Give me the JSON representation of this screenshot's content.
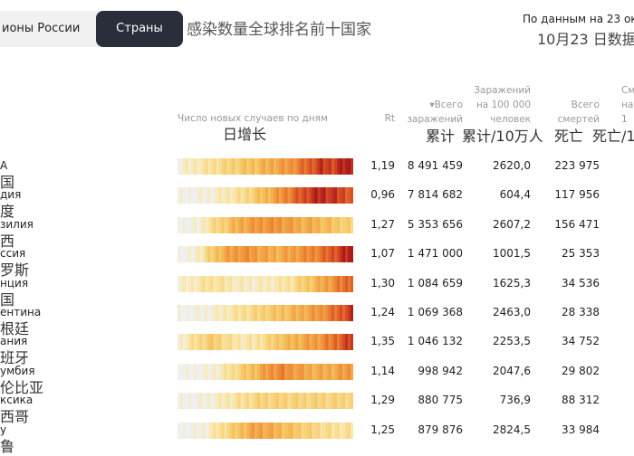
{
  "tabs": {
    "regions": "ионы России",
    "countries": "Страны"
  },
  "heading_cn": "感染数量全球排名前十国家",
  "date_ru": "По данным на 23 ок",
  "date_cn": "10月23 日数据",
  "headers": {
    "daily_ru": "Число новых случаев по дням",
    "daily_cn": "日增长",
    "rt": "Rt",
    "total_ru_line1": "▾Всего",
    "total_ru_line2": "заражений",
    "total_cn": "累计",
    "per100_ru_line1": "Заражений",
    "per100_ru_line2": "на 100 000",
    "per100_ru_line3": "человек",
    "per100_cn": "累计/10万人",
    "deaths_ru_line1": "Всего",
    "deaths_ru_line2": "смертей",
    "deaths_cn": "死亡",
    "deaths_per_ru_line1": "См",
    "deaths_per_ru_line2": "на 1",
    "deaths_per_cn": "死亡/1"
  },
  "countries": [
    {
      "ru": "A",
      "cn": "国",
      "rt": "1,19",
      "total": "8 491 459",
      "per100k": "2620,0",
      "deaths": "223 975",
      "intensity": [
        0.05,
        0.1,
        0.15,
        0.2,
        0.25,
        0.3,
        0.35,
        0.4,
        0.45,
        0.5,
        0.55,
        0.6,
        0.7,
        0.8,
        0.9,
        0.85,
        0.95,
        1.0
      ]
    },
    {
      "ru": "дия",
      "cn": "度",
      "rt": "0,96",
      "total": "7 814 682",
      "per100k": "604,4",
      "deaths": "117 956",
      "intensity": [
        0.0,
        0.0,
        0.02,
        0.05,
        0.1,
        0.15,
        0.2,
        0.3,
        0.4,
        0.5,
        0.6,
        0.7,
        0.8,
        0.9,
        0.95,
        0.9,
        0.85,
        0.8
      ]
    },
    {
      "ru": "зилия",
      "cn": "西",
      "rt": "1,27",
      "total": "5 353 656",
      "per100k": "2607,2",
      "deaths": "156 471",
      "intensity": [
        0.0,
        0.02,
        0.05,
        0.2,
        0.3,
        0.4,
        0.5,
        0.55,
        0.6,
        0.6,
        0.6,
        0.55,
        0.5,
        0.5,
        0.45,
        0.4,
        0.35,
        0.3
      ]
    },
    {
      "ru": "ссия",
      "cn": "罗斯",
      "rt": "1,07",
      "total": "1 471 000",
      "per100k": "1001,5",
      "deaths": "25 353",
      "intensity": [
        0.0,
        0.02,
        0.1,
        0.3,
        0.45,
        0.55,
        0.6,
        0.6,
        0.55,
        0.5,
        0.5,
        0.55,
        0.6,
        0.65,
        0.7,
        0.8,
        0.9,
        1.0
      ]
    },
    {
      "ru": "нция",
      "cn": "国",
      "rt": "1,30",
      "total": "1 084 659",
      "per100k": "1625,3",
      "deaths": "34 536",
      "intensity": [
        0.05,
        0.1,
        0.15,
        0.2,
        0.2,
        0.15,
        0.1,
        0.1,
        0.1,
        0.12,
        0.15,
        0.2,
        0.3,
        0.4,
        0.5,
        0.6,
        0.7,
        0.8
      ]
    },
    {
      "ru": "ентина",
      "cn": "根廷",
      "rt": "1,24",
      "total": "1 069 368",
      "per100k": "2463,0",
      "deaths": "28 338",
      "intensity": [
        0.0,
        0.0,
        0.02,
        0.05,
        0.1,
        0.15,
        0.2,
        0.25,
        0.3,
        0.35,
        0.4,
        0.45,
        0.5,
        0.55,
        0.6,
        0.7,
        0.8,
        0.9
      ]
    },
    {
      "ru": "ания",
      "cn": "班牙",
      "rt": "1,35",
      "total": "1 046 132",
      "per100k": "2253,5",
      "deaths": "34 752",
      "intensity": [
        0.05,
        0.15,
        0.25,
        0.35,
        0.3,
        0.2,
        0.15,
        0.15,
        0.2,
        0.3,
        0.4,
        0.45,
        0.5,
        0.55,
        0.6,
        0.7,
        0.8,
        0.9
      ]
    },
    {
      "ru": "умбия",
      "cn": "伦比亚",
      "rt": "1,14",
      "total": "998 942",
      "per100k": "2047,6",
      "deaths": "29 802",
      "intensity": [
        0.0,
        0.0,
        0.02,
        0.05,
        0.1,
        0.2,
        0.3,
        0.4,
        0.5,
        0.6,
        0.65,
        0.6,
        0.55,
        0.5,
        0.5,
        0.5,
        0.55,
        0.6
      ]
    },
    {
      "ru": "ксика",
      "cn": "西哥",
      "rt": "1,29",
      "total": "880 775",
      "per100k": "736,9",
      "deaths": "88 312",
      "intensity": [
        0.0,
        0.0,
        0.02,
        0.05,
        0.1,
        0.15,
        0.2,
        0.25,
        0.3,
        0.3,
        0.3,
        0.3,
        0.3,
        0.3,
        0.3,
        0.3,
        0.3,
        0.3
      ]
    },
    {
      "ru": "у",
      "cn": "鲁",
      "rt": "1,25",
      "total": "879 876",
      "per100k": "2824,5",
      "deaths": "33 984",
      "intensity": [
        0.0,
        0.0,
        0.02,
        0.1,
        0.2,
        0.3,
        0.4,
        0.5,
        0.55,
        0.5,
        0.45,
        0.4,
        0.35,
        0.3,
        0.25,
        0.2,
        0.2,
        0.2
      ]
    }
  ]
}
